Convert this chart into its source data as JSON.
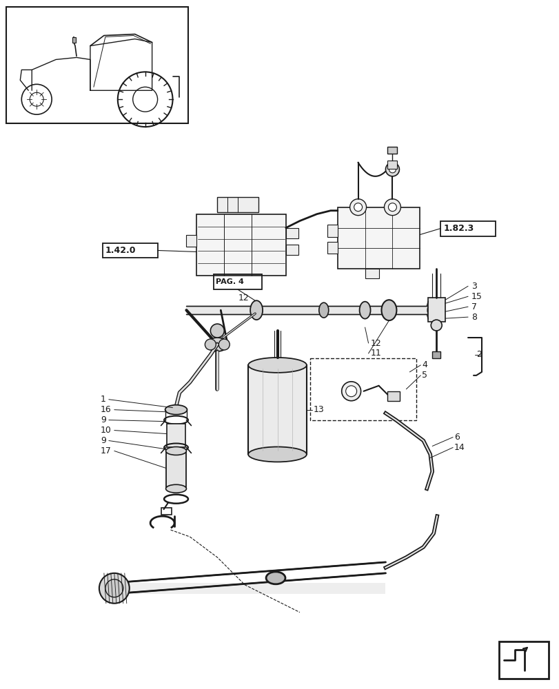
{
  "bg_color": "#ffffff",
  "line_color": "#1a1a1a",
  "figsize": [
    8.12,
    10.0
  ],
  "dpi": 100
}
